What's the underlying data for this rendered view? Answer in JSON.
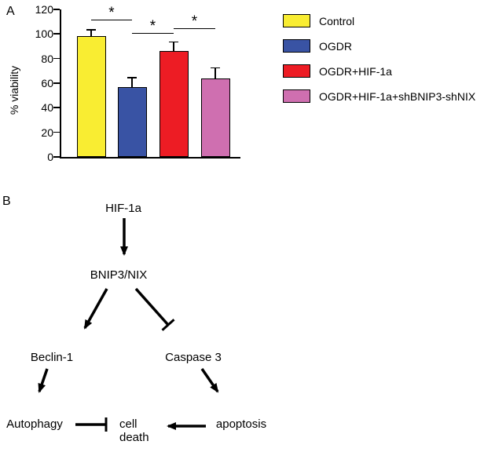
{
  "panels": {
    "a": "A",
    "b": "B"
  },
  "chart_data": {
    "type": "bar",
    "title": "",
    "xlabel": "",
    "ylabel": "% viability",
    "ylim": [
      0,
      120
    ],
    "yticks": [
      0,
      20,
      40,
      60,
      80,
      100,
      120
    ],
    "grid": false,
    "categories": [
      "Control",
      "OGDR",
      "OGDR+HIF-1a",
      "OGDR+HIF-1a+shBNIP3-shNIX"
    ],
    "values": [
      98,
      57,
      86,
      64
    ],
    "errors": [
      5,
      7,
      7,
      8
    ],
    "bar_colors": [
      "#f9ed32",
      "#3953a4",
      "#ed1c24",
      "#cf6fb0"
    ],
    "significance": [
      {
        "from": 0,
        "to": 1,
        "label": "*",
        "y": 111
      },
      {
        "from": 1,
        "to": 2,
        "label": "*",
        "y": 100
      },
      {
        "from": 2,
        "to": 3,
        "label": "*",
        "y": 104
      }
    ],
    "legend_position": "right",
    "legend": [
      {
        "label": "Control",
        "color": "#f9ed32"
      },
      {
        "label": "OGDR",
        "color": "#3953a4"
      },
      {
        "label": "OGDR+HIF-1a",
        "color": "#ed1c24"
      },
      {
        "label": "OGDR+HIF-1a+shBNIP3-shNIX",
        "color": "#cf6fb0"
      }
    ]
  },
  "diagram": {
    "nodes": {
      "hif": "HIF-1a",
      "bnip": "BNIP3/NIX",
      "beclin": "Beclin-1",
      "caspase": "Caspase 3",
      "autophagy": "Autophagy",
      "cell_death": "cell\ndeath",
      "apoptosis": "apoptosis"
    },
    "edges": [
      {
        "from": "HIF-1a",
        "to": "BNIP3/NIX",
        "type": "arrow"
      },
      {
        "from": "BNIP3/NIX",
        "to": "Beclin-1",
        "type": "arrow"
      },
      {
        "from": "BNIP3/NIX",
        "to": "Caspase 3",
        "type": "inhibit"
      },
      {
        "from": "Beclin-1",
        "to": "Autophagy",
        "type": "arrow"
      },
      {
        "from": "Caspase 3",
        "to": "apoptosis",
        "type": "arrow"
      },
      {
        "from": "Autophagy",
        "to": "cell death",
        "type": "inhibit"
      },
      {
        "from": "apoptosis",
        "to": "cell death",
        "type": "arrow"
      }
    ]
  }
}
